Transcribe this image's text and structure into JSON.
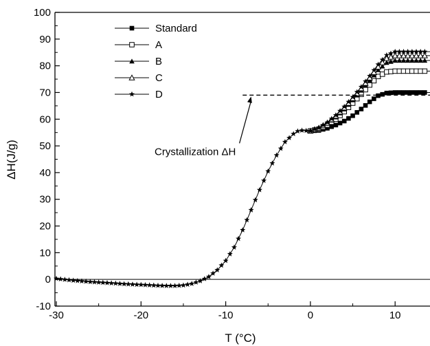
{
  "chart_data": {
    "type": "line",
    "title": "",
    "xlabel": "T (°C)",
    "ylabel": "ΔH(J/g)",
    "xlim": [
      -30,
      15
    ],
    "ylim": [
      -10,
      100
    ],
    "x_ticks": [
      -30,
      -20,
      -10,
      0,
      10
    ],
    "y_ticks": [
      -10,
      0,
      10,
      20,
      30,
      40,
      50,
      60,
      70,
      80,
      90,
      100
    ],
    "x_tick_labels": [
      "-30",
      "-20",
      "-10",
      "0",
      "10"
    ],
    "y_tick_labels": [
      "-10",
      "0",
      "10",
      "20",
      "30",
      "40",
      "50",
      "60",
      "70",
      "80",
      "90",
      "100"
    ],
    "grid": false,
    "legend_position": "top-left",
    "reference_line_y": 0,
    "annotation": {
      "text": "Crystallization ΔH",
      "dashed_line": {
        "x_start": -8,
        "x_end": 15,
        "y": 69
      },
      "arrow_tip": {
        "x": -7,
        "y": 69
      }
    },
    "common_segment": [
      [
        -30,
        0.3
      ],
      [
        -28,
        -0.4
      ],
      [
        -26,
        -0.9
      ],
      [
        -24,
        -1.3
      ],
      [
        -22,
        -1.7
      ],
      [
        -20,
        -2.0
      ],
      [
        -18,
        -2.3
      ],
      [
        -17,
        -2.4
      ],
      [
        -16,
        -2.4
      ],
      [
        -15,
        -2.2
      ],
      [
        -14,
        -1.6
      ],
      [
        -13,
        -0.6
      ],
      [
        -12,
        1.0
      ],
      [
        -11,
        3.5
      ],
      [
        -10,
        7.0
      ],
      [
        -9,
        12.0
      ],
      [
        -8,
        18.5
      ],
      [
        -7,
        26.0
      ],
      [
        -6,
        33.5
      ],
      [
        -5,
        40.5
      ],
      [
        -4,
        46.5
      ],
      [
        -3,
        51.5
      ],
      [
        -2,
        54.5
      ],
      [
        -1.5,
        55.5
      ],
      [
        -1,
        55.8
      ],
      [
        0,
        55.6
      ]
    ],
    "series": [
      {
        "name": "Standard",
        "marker": "filled-square",
        "values": [
          [
            0,
            55.6
          ],
          [
            1,
            55.8
          ],
          [
            2,
            56.6
          ],
          [
            3,
            57.8
          ],
          [
            4,
            59.3
          ],
          [
            5,
            61.3
          ],
          [
            6,
            63.8
          ],
          [
            7,
            66.5
          ],
          [
            8,
            68.8
          ],
          [
            9,
            69.8
          ],
          [
            10,
            70.0
          ],
          [
            15,
            70.0
          ]
        ]
      },
      {
        "name": "A",
        "marker": "open-square",
        "values": [
          [
            0,
            55.6
          ],
          [
            1,
            56.3
          ],
          [
            2,
            57.8
          ],
          [
            3,
            60.0
          ],
          [
            4,
            62.8
          ],
          [
            5,
            66.0
          ],
          [
            6,
            69.3
          ],
          [
            7,
            72.8
          ],
          [
            8,
            76.0
          ],
          [
            9,
            77.7
          ],
          [
            10,
            78.0
          ],
          [
            15,
            78.0
          ]
        ]
      },
      {
        "name": "B",
        "marker": "filled-triangle",
        "values": [
          [
            0,
            55.6
          ],
          [
            1,
            56.6
          ],
          [
            2,
            58.4
          ],
          [
            3,
            60.8
          ],
          [
            4,
            63.8
          ],
          [
            5,
            67.2
          ],
          [
            6,
            70.8
          ],
          [
            7,
            74.6
          ],
          [
            8,
            78.5
          ],
          [
            9,
            81.2
          ],
          [
            10,
            82.0
          ],
          [
            15,
            82.0
          ]
        ]
      },
      {
        "name": "C",
        "marker": "open-triangle",
        "values": [
          [
            0,
            55.6
          ],
          [
            1,
            56.7
          ],
          [
            2,
            58.6
          ],
          [
            3,
            61.2
          ],
          [
            4,
            64.3
          ],
          [
            5,
            67.8
          ],
          [
            6,
            71.5
          ],
          [
            7,
            75.5
          ],
          [
            8,
            79.6
          ],
          [
            9,
            82.8
          ],
          [
            10,
            83.8
          ],
          [
            15,
            83.8
          ]
        ]
      },
      {
        "name": "D",
        "marker": "star",
        "values": [
          [
            0,
            55.6
          ],
          [
            1,
            56.8
          ],
          [
            2,
            58.8
          ],
          [
            3,
            61.5
          ],
          [
            4,
            64.7
          ],
          [
            5,
            68.3
          ],
          [
            6,
            72.1
          ],
          [
            7,
            76.2
          ],
          [
            8,
            80.5
          ],
          [
            9,
            84.0
          ],
          [
            10,
            85.3
          ],
          [
            15,
            85.3
          ]
        ]
      }
    ]
  }
}
